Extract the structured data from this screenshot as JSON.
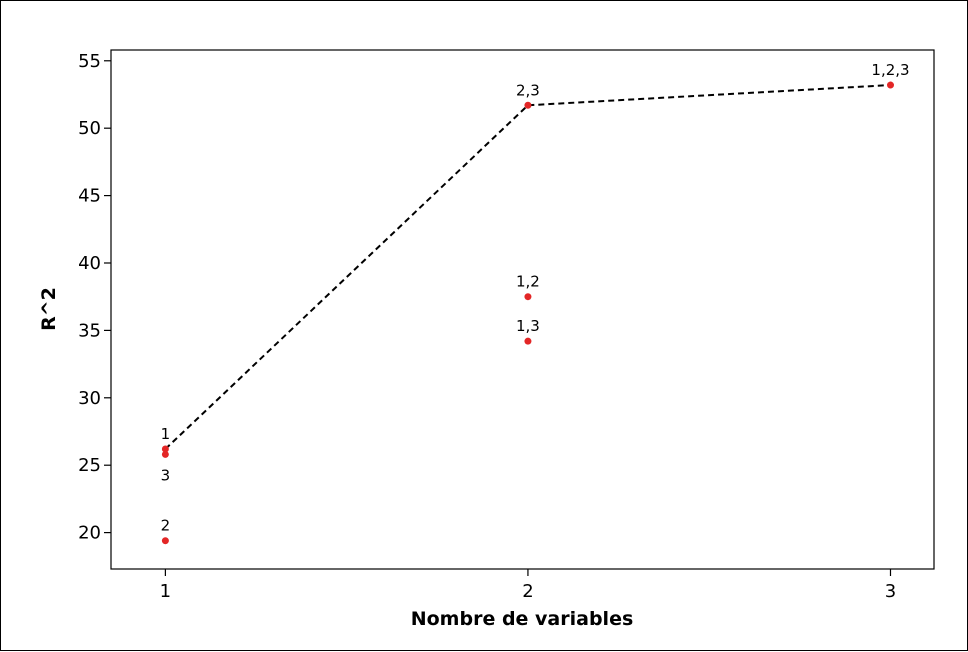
{
  "chart_data": {
    "type": "scatter",
    "xlabel": "Nombre de variables",
    "ylabel": "R^2",
    "xlim": [
      0.85,
      3.12
    ],
    "ylim": [
      17.3,
      55.8
    ],
    "x_ticks": [
      1,
      2,
      3
    ],
    "x_tick_labels": [
      "1",
      "2",
      "3"
    ],
    "y_ticks": [
      20,
      25,
      30,
      35,
      40,
      45,
      50,
      55
    ],
    "y_tick_labels": [
      "20",
      "25",
      "30",
      "35",
      "40",
      "45",
      "50",
      "55"
    ],
    "grid": false,
    "marker_color": "#e32626",
    "line_color": "#000000",
    "points": [
      {
        "x": 1,
        "y": 26.2,
        "label": "1",
        "label_pos": "above"
      },
      {
        "x": 1,
        "y": 25.8,
        "label": "3",
        "label_pos": "below"
      },
      {
        "x": 1,
        "y": 19.4,
        "label": "2",
        "label_pos": "above"
      },
      {
        "x": 2,
        "y": 51.7,
        "label": "2,3",
        "label_pos": "above"
      },
      {
        "x": 2,
        "y": 37.5,
        "label": "1,2",
        "label_pos": "above"
      },
      {
        "x": 2,
        "y": 34.2,
        "label": "1,3",
        "label_pos": "above"
      },
      {
        "x": 3,
        "y": 53.2,
        "label": "1,2,3",
        "label_pos": "above"
      }
    ],
    "best_line": {
      "style": "dashed",
      "x": [
        1,
        2,
        3
      ],
      "y": [
        26.2,
        51.7,
        53.2
      ]
    }
  }
}
